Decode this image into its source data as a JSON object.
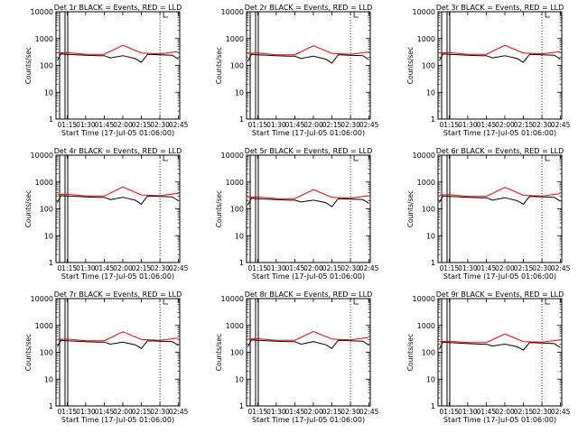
{
  "chart_data": [
    {
      "type": "line",
      "title": "Det 1r BLACK = Events, RED = LLD",
      "xlabel": "Start Time (17-Jul-05 01:06:00)",
      "ylabel": "Counts/sec",
      "x_ticks": [
        "01:15",
        "01:30",
        "01:45",
        "02:00",
        "02:15",
        "02:30",
        "02:45"
      ],
      "y_ticks": [
        "1",
        "10",
        "100",
        "1000",
        "10000"
      ],
      "ylim": [
        1,
        10000
      ],
      "y_scale": "log",
      "grid": false,
      "legend": "in title",
      "series": [
        {
          "name": "Events",
          "color": "#000000",
          "time": [
            "01:07",
            "01:10",
            "01:15",
            "01:30",
            "01:40",
            "01:45",
            "01:50",
            "02:00",
            "02:10",
            "02:15",
            "02:20",
            "02:30",
            "02:40",
            "02:45"
          ],
          "values": [
            150,
            270,
            260,
            240,
            230,
            230,
            190,
            230,
            180,
            130,
            260,
            250,
            240,
            170
          ]
        },
        {
          "name": "LLD",
          "color": "#ff0000",
          "time": [
            "01:07",
            "01:15",
            "01:30",
            "01:45",
            "02:00",
            "02:15",
            "02:30",
            "02:45"
          ],
          "values": [
            290,
            300,
            260,
            260,
            560,
            290,
            270,
            330
          ]
        }
      ]
    },
    {
      "type": "line",
      "title": "Det 2r BLACK = Events, RED = LLD",
      "xlabel": "Start Time (17-Jul-05 01:06:00)",
      "ylabel": "Counts/sec",
      "x_ticks": [
        "01:15",
        "01:30",
        "01:45",
        "02:00",
        "02:15",
        "02:30",
        "02:45"
      ],
      "y_ticks": [
        "1",
        "10",
        "100",
        "1000",
        "10000"
      ],
      "ylim": [
        1,
        10000
      ],
      "y_scale": "log",
      "grid": false,
      "legend": "in title",
      "series": [
        {
          "name": "Events",
          "color": "#000000",
          "time": [
            "01:07",
            "01:10",
            "01:15",
            "01:30",
            "01:40",
            "01:45",
            "01:50",
            "02:00",
            "02:10",
            "02:15",
            "02:20",
            "02:30",
            "02:40",
            "02:45"
          ],
          "values": [
            140,
            260,
            250,
            230,
            220,
            220,
            180,
            220,
            170,
            120,
            250,
            240,
            230,
            160
          ]
        },
        {
          "name": "LLD",
          "color": "#ff0000",
          "time": [
            "01:07",
            "01:15",
            "01:30",
            "01:45",
            "02:00",
            "02:15",
            "02:30",
            "02:45"
          ],
          "values": [
            280,
            290,
            250,
            250,
            540,
            280,
            260,
            320
          ]
        }
      ]
    },
    {
      "type": "line",
      "title": "Det 3r BLACK = Events, RED = LLD",
      "xlabel": "Start Time (17-Jul-05 01:06:00)",
      "ylabel": "Counts/sec",
      "x_ticks": [
        "01:15",
        "01:30",
        "01:45",
        "02:00",
        "02:15",
        "02:30",
        "02:45"
      ],
      "y_ticks": [
        "1",
        "10",
        "100",
        "1000",
        "10000"
      ],
      "ylim": [
        1,
        10000
      ],
      "y_scale": "log",
      "grid": false,
      "legend": "in title",
      "series": [
        {
          "name": "Events",
          "color": "#000000",
          "time": [
            "01:07",
            "01:10",
            "01:15",
            "01:30",
            "01:40",
            "01:45",
            "01:50",
            "02:00",
            "02:10",
            "02:15",
            "02:20",
            "02:30",
            "02:40",
            "02:45"
          ],
          "values": [
            150,
            270,
            260,
            240,
            230,
            230,
            190,
            230,
            180,
            130,
            260,
            250,
            240,
            170
          ]
        },
        {
          "name": "LLD",
          "color": "#ff0000",
          "time": [
            "01:07",
            "01:15",
            "01:30",
            "01:45",
            "02:00",
            "02:15",
            "02:30",
            "02:45"
          ],
          "values": [
            290,
            300,
            260,
            260,
            560,
            290,
            270,
            330
          ]
        }
      ]
    },
    {
      "type": "line",
      "title": "Det 4r BLACK = Events, RED = LLD",
      "xlabel": "Start Time (17-Jul-05 01:06:00)",
      "ylabel": "Counts/sec",
      "x_ticks": [
        "01:15",
        "01:30",
        "01:45",
        "02:00",
        "02:15",
        "02:30",
        "02:45"
      ],
      "y_ticks": [
        "1",
        "10",
        "100",
        "1000",
        "10000"
      ],
      "ylim": [
        1,
        10000
      ],
      "y_scale": "log",
      "grid": false,
      "legend": "in title",
      "series": [
        {
          "name": "Events",
          "color": "#000000",
          "time": [
            "01:07",
            "01:10",
            "01:15",
            "01:30",
            "01:40",
            "01:45",
            "01:50",
            "02:00",
            "02:10",
            "02:15",
            "02:20",
            "02:30",
            "02:40",
            "02:45"
          ],
          "values": [
            170,
            310,
            300,
            280,
            270,
            270,
            220,
            270,
            210,
            150,
            300,
            290,
            280,
            200
          ]
        },
        {
          "name": "LLD",
          "color": "#ff0000",
          "time": [
            "01:07",
            "01:15",
            "01:30",
            "01:45",
            "02:00",
            "02:15",
            "02:30",
            "02:45"
          ],
          "values": [
            340,
            350,
            300,
            300,
            650,
            330,
            310,
            380
          ]
        }
      ]
    },
    {
      "type": "line",
      "title": "Det 5r BLACK = Events, RED = LLD",
      "xlabel": "Start Time (17-Jul-05 01:06:00)",
      "ylabel": "Counts/sec",
      "x_ticks": [
        "01:15",
        "01:30",
        "01:45",
        "02:00",
        "02:15",
        "02:30",
        "02:45"
      ],
      "y_ticks": [
        "1",
        "10",
        "100",
        "1000",
        "10000"
      ],
      "ylim": [
        1,
        10000
      ],
      "y_scale": "log",
      "grid": false,
      "legend": "in title",
      "series": [
        {
          "name": "Events",
          "color": "#000000",
          "time": [
            "01:07",
            "01:10",
            "01:15",
            "01:30",
            "01:40",
            "01:45",
            "01:50",
            "02:00",
            "02:10",
            "02:15",
            "02:20",
            "02:30",
            "02:40",
            "02:45"
          ],
          "values": [
            140,
            250,
            240,
            220,
            210,
            210,
            180,
            210,
            170,
            120,
            240,
            230,
            220,
            160
          ]
        },
        {
          "name": "LLD",
          "color": "#ff0000",
          "time": [
            "01:07",
            "01:15",
            "01:30",
            "01:45",
            "02:00",
            "02:15",
            "02:30",
            "02:45"
          ],
          "values": [
            270,
            280,
            240,
            240,
            520,
            270,
            250,
            310
          ]
        }
      ]
    },
    {
      "type": "line",
      "title": "Det 6r BLACK = Events, RED = LLD",
      "xlabel": "Start Time (17-Jul-05 01:06:00)",
      "ylabel": "Counts/sec",
      "x_ticks": [
        "01:15",
        "01:30",
        "01:45",
        "02:00",
        "02:15",
        "02:30",
        "02:45"
      ],
      "y_ticks": [
        "1",
        "10",
        "100",
        "1000",
        "10000"
      ],
      "ylim": [
        1,
        10000
      ],
      "y_scale": "log",
      "grid": false,
      "legend": "in title",
      "series": [
        {
          "name": "Events",
          "color": "#000000",
          "time": [
            "01:07",
            "01:10",
            "01:15",
            "01:30",
            "01:40",
            "01:45",
            "01:50",
            "02:00",
            "02:10",
            "02:15",
            "02:20",
            "02:30",
            "02:40",
            "02:45"
          ],
          "values": [
            170,
            300,
            290,
            270,
            260,
            260,
            210,
            260,
            200,
            150,
            290,
            280,
            270,
            190
          ]
        },
        {
          "name": "LLD",
          "color": "#ff0000",
          "time": [
            "01:07",
            "01:15",
            "01:30",
            "01:45",
            "02:00",
            "02:15",
            "02:30",
            "02:45"
          ],
          "values": [
            330,
            340,
            290,
            290,
            630,
            320,
            300,
            370
          ]
        }
      ]
    },
    {
      "type": "line",
      "title": "Det 7r BLACK = Events, RED = LLD",
      "xlabel": "Start Time (17-Jul-05 01:06:00)",
      "ylabel": "Counts/sec",
      "x_ticks": [
        "01:15",
        "01:30",
        "01:45",
        "02:00",
        "02:15",
        "02:30",
        "02:45"
      ],
      "y_ticks": [
        "1",
        "10",
        "100",
        "1000",
        "10000"
      ],
      "ylim": [
        1,
        10000
      ],
      "y_scale": "log",
      "grid": false,
      "legend": "in title",
      "series": [
        {
          "name": "Events",
          "color": "#000000",
          "time": [
            "01:07",
            "01:10",
            "01:15",
            "01:30",
            "01:40",
            "01:45",
            "01:50",
            "02:00",
            "02:10",
            "02:15",
            "02:20",
            "02:30",
            "02:40",
            "02:45"
          ],
          "values": [
            160,
            280,
            270,
            250,
            240,
            240,
            200,
            240,
            190,
            140,
            270,
            260,
            250,
            180
          ]
        },
        {
          "name": "LLD",
          "color": "#ff0000",
          "time": [
            "01:07",
            "01:15",
            "01:30",
            "01:45",
            "02:00",
            "02:15",
            "02:30",
            "02:45"
          ],
          "values": [
            300,
            310,
            270,
            270,
            580,
            300,
            280,
            340
          ]
        }
      ]
    },
    {
      "type": "line",
      "title": "Det 8r BLACK = Events, RED = LLD",
      "xlabel": "Start Time (17-Jul-05 01:06:00)",
      "ylabel": "Counts/sec",
      "x_ticks": [
        "01:15",
        "01:30",
        "01:45",
        "02:00",
        "02:15",
        "02:30",
        "02:45"
      ],
      "y_ticks": [
        "1",
        "10",
        "100",
        "1000",
        "10000"
      ],
      "ylim": [
        1,
        10000
      ],
      "y_scale": "log",
      "grid": false,
      "legend": "in title",
      "series": [
        {
          "name": "Events",
          "color": "#000000",
          "time": [
            "01:07",
            "01:10",
            "01:15",
            "01:30",
            "01:40",
            "01:45",
            "01:50",
            "02:00",
            "02:10",
            "02:15",
            "02:20",
            "02:30",
            "02:40",
            "02:45"
          ],
          "values": [
            160,
            290,
            280,
            260,
            250,
            250,
            200,
            250,
            190,
            140,
            280,
            270,
            260,
            180
          ]
        },
        {
          "name": "LLD",
          "color": "#ff0000",
          "time": [
            "01:07",
            "01:15",
            "01:30",
            "01:45",
            "02:00",
            "02:15",
            "02:30",
            "02:45"
          ],
          "values": [
            310,
            320,
            280,
            280,
            600,
            310,
            290,
            360
          ]
        }
      ]
    },
    {
      "type": "line",
      "title": "Det 9r BLACK = Events, RED = LLD",
      "xlabel": "Start Time (17-Jul-05 01:06:00)",
      "ylabel": "Counts/sec",
      "x_ticks": [
        "01:15",
        "01:30",
        "01:45",
        "02:00",
        "02:15",
        "02:30",
        "02:45"
      ],
      "y_ticks": [
        "1",
        "10",
        "100",
        "1000",
        "10000"
      ],
      "ylim": [
        1,
        10000
      ],
      "y_scale": "log",
      "grid": false,
      "legend": "in title",
      "series": [
        {
          "name": "Events",
          "color": "#000000",
          "time": [
            "01:07",
            "01:10",
            "01:15",
            "01:30",
            "01:40",
            "01:45",
            "01:50",
            "02:00",
            "02:10",
            "02:15",
            "02:20",
            "02:30",
            "02:40",
            "02:45"
          ],
          "values": [
            130,
            240,
            230,
            210,
            200,
            200,
            170,
            200,
            160,
            120,
            230,
            220,
            210,
            150
          ]
        },
        {
          "name": "LLD",
          "color": "#ff0000",
          "time": [
            "01:07",
            "01:15",
            "01:30",
            "01:45",
            "02:00",
            "02:15",
            "02:30",
            "02:45"
          ],
          "values": [
            250,
            260,
            230,
            230,
            480,
            250,
            240,
            290
          ]
        }
      ]
    }
  ]
}
